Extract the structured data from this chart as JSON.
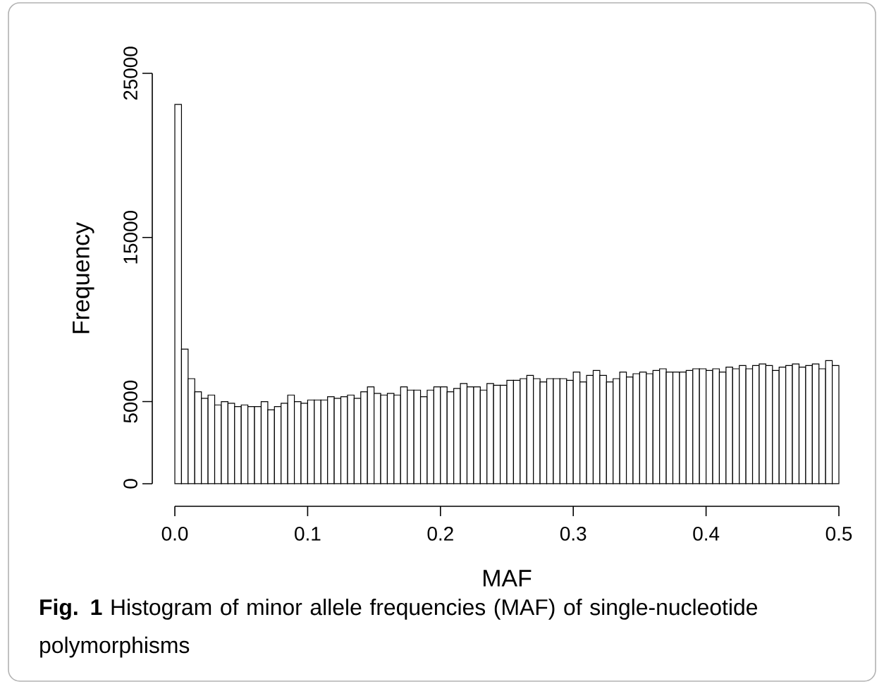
{
  "chart_data": {
    "type": "histogram",
    "xlabel": "MAF",
    "ylabel": "Frequency",
    "bins": [
      0.0,
      0.005,
      0.01,
      0.015,
      0.02,
      0.025,
      0.03,
      0.035,
      0.04,
      0.045,
      0.05,
      0.055,
      0.06,
      0.065,
      0.07,
      0.075,
      0.08,
      0.085,
      0.09,
      0.095,
      0.1,
      0.105,
      0.11,
      0.115,
      0.12,
      0.125,
      0.13,
      0.135,
      0.14,
      0.145,
      0.15,
      0.155,
      0.16,
      0.165,
      0.17,
      0.175,
      0.18,
      0.185,
      0.19,
      0.195,
      0.2,
      0.205,
      0.21,
      0.215,
      0.22,
      0.225,
      0.23,
      0.235,
      0.24,
      0.245,
      0.25,
      0.255,
      0.26,
      0.265,
      0.27,
      0.275,
      0.28,
      0.285,
      0.29,
      0.295,
      0.3,
      0.305,
      0.31,
      0.315,
      0.32,
      0.325,
      0.33,
      0.335,
      0.34,
      0.345,
      0.35,
      0.355,
      0.36,
      0.365,
      0.37,
      0.375,
      0.38,
      0.385,
      0.39,
      0.395,
      0.4,
      0.405,
      0.41,
      0.415,
      0.42,
      0.425,
      0.43,
      0.435,
      0.44,
      0.445,
      0.45,
      0.455,
      0.46,
      0.465,
      0.47,
      0.475,
      0.48,
      0.485,
      0.49,
      0.495,
      0.5
    ],
    "values": [
      23100,
      8200,
      6400,
      5600,
      5200,
      5400,
      4800,
      5000,
      4900,
      4700,
      4800,
      4700,
      4700,
      5000,
      4500,
      4700,
      4900,
      5400,
      5000,
      4900,
      5100,
      5100,
      5100,
      5300,
      5200,
      5300,
      5400,
      5200,
      5600,
      5900,
      5500,
      5400,
      5500,
      5400,
      5900,
      5700,
      5700,
      5300,
      5700,
      5900,
      5900,
      5600,
      5800,
      6100,
      5900,
      5900,
      5700,
      6100,
      6000,
      6000,
      6300,
      6300,
      6400,
      6600,
      6400,
      6200,
      6400,
      6400,
      6400,
      6300,
      6800,
      6200,
      6600,
      6900,
      6600,
      6200,
      6400,
      6800,
      6500,
      6700,
      6800,
      6700,
      6900,
      7000,
      6800,
      6800,
      6800,
      6900,
      7000,
      7000,
      6900,
      7000,
      6800,
      7100,
      7000,
      7200,
      7000,
      7200,
      7300,
      7200,
      6900,
      7100,
      7200,
      7300,
      7100,
      7200,
      7300,
      7000,
      7500,
      7200
    ],
    "color": "#ffffff",
    "xlim": [
      0,
      0.5
    ],
    "xticks": [
      {
        "value": 0,
        "label": "0.0"
      },
      0.1,
      0.2,
      0.3,
      0.4,
      0.5
    ],
    "ylim": [
      0,
      25000
    ],
    "yticks": [
      0,
      5000,
      15000,
      25000
    ],
    "annotations": [
      "**Fig. 1** Histogram of minor allele frequencies (MAF) of single-nucleotide polymorphisms"
    ]
  }
}
